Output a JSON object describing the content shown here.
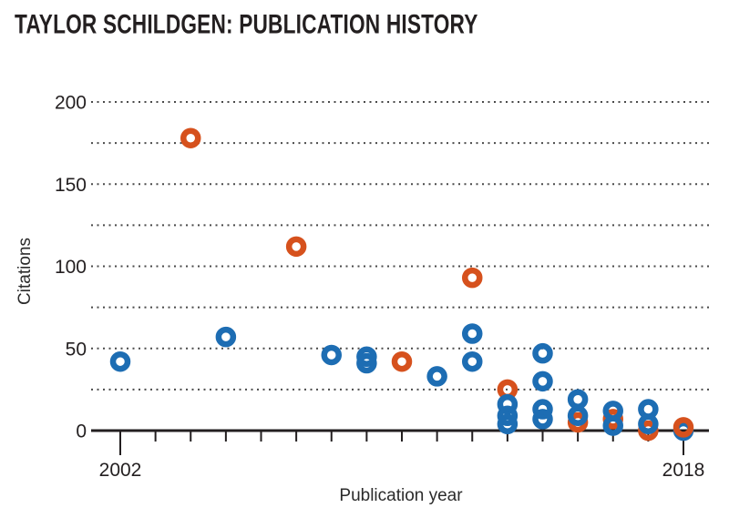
{
  "chart_data": {
    "type": "scatter",
    "title": "TAYLOR SCHILDGEN: PUBLICATION HISTORY",
    "xlabel": "Publication year",
    "ylabel": "Citations",
    "xlim": [
      2001.2,
      2018.7
    ],
    "ylim": [
      0,
      200
    ],
    "y_ticks": [
      0,
      50,
      100,
      150,
      200
    ],
    "gridline_step": 25,
    "grid_style": "dotted horizontal lines every 25 citations",
    "x_ticks_years": [
      2002,
      2003,
      2004,
      2005,
      2006,
      2007,
      2008,
      2009,
      2010,
      2011,
      2012,
      2013,
      2014,
      2015,
      2016,
      2017,
      2018
    ],
    "x_labeled_years": [
      2002,
      2018
    ],
    "legend": "none",
    "marker": "open circle",
    "colors": {
      "blue": "#1d6db3",
      "orange": "#d6511d",
      "axis": "#231f20",
      "grid": "#4a4a4a"
    },
    "points": [
      {
        "year": 2002,
        "citations": 42,
        "color": "blue"
      },
      {
        "year": 2004,
        "citations": 178,
        "color": "orange"
      },
      {
        "year": 2005,
        "citations": 57,
        "color": "blue"
      },
      {
        "year": 2007,
        "citations": 112,
        "color": "orange"
      },
      {
        "year": 2008,
        "citations": 46,
        "color": "blue"
      },
      {
        "year": 2009,
        "citations": 45,
        "color": "blue"
      },
      {
        "year": 2009,
        "citations": 41,
        "color": "blue"
      },
      {
        "year": 2010,
        "citations": 42,
        "color": "orange"
      },
      {
        "year": 2011,
        "citations": 33,
        "color": "blue"
      },
      {
        "year": 2012,
        "citations": 93,
        "color": "orange"
      },
      {
        "year": 2012,
        "citations": 59,
        "color": "blue"
      },
      {
        "year": 2012,
        "citations": 42,
        "color": "blue"
      },
      {
        "year": 2013,
        "citations": 25,
        "color": "orange"
      },
      {
        "year": 2013,
        "citations": 16,
        "color": "blue"
      },
      {
        "year": 2013,
        "citations": 9,
        "color": "blue"
      },
      {
        "year": 2013,
        "citations": 4,
        "color": "blue"
      },
      {
        "year": 2014,
        "citations": 47,
        "color": "blue"
      },
      {
        "year": 2014,
        "citations": 30,
        "color": "blue"
      },
      {
        "year": 2014,
        "citations": 13,
        "color": "blue"
      },
      {
        "year": 2014,
        "citations": 7,
        "color": "blue"
      },
      {
        "year": 2015,
        "citations": 5,
        "color": "orange"
      },
      {
        "year": 2015,
        "citations": 19,
        "color": "blue"
      },
      {
        "year": 2015,
        "citations": 9,
        "color": "blue"
      },
      {
        "year": 2016,
        "citations": 7,
        "color": "orange"
      },
      {
        "year": 2016,
        "citations": 12,
        "color": "blue"
      },
      {
        "year": 2016,
        "citations": 3,
        "color": "blue"
      },
      {
        "year": 2017,
        "citations": 0,
        "color": "orange"
      },
      {
        "year": 2017,
        "citations": 13,
        "color": "blue"
      },
      {
        "year": 2017,
        "citations": 4,
        "color": "blue"
      },
      {
        "year": 2018,
        "citations": 0,
        "color": "blue"
      },
      {
        "year": 2018,
        "citations": 2,
        "color": "orange"
      }
    ]
  }
}
